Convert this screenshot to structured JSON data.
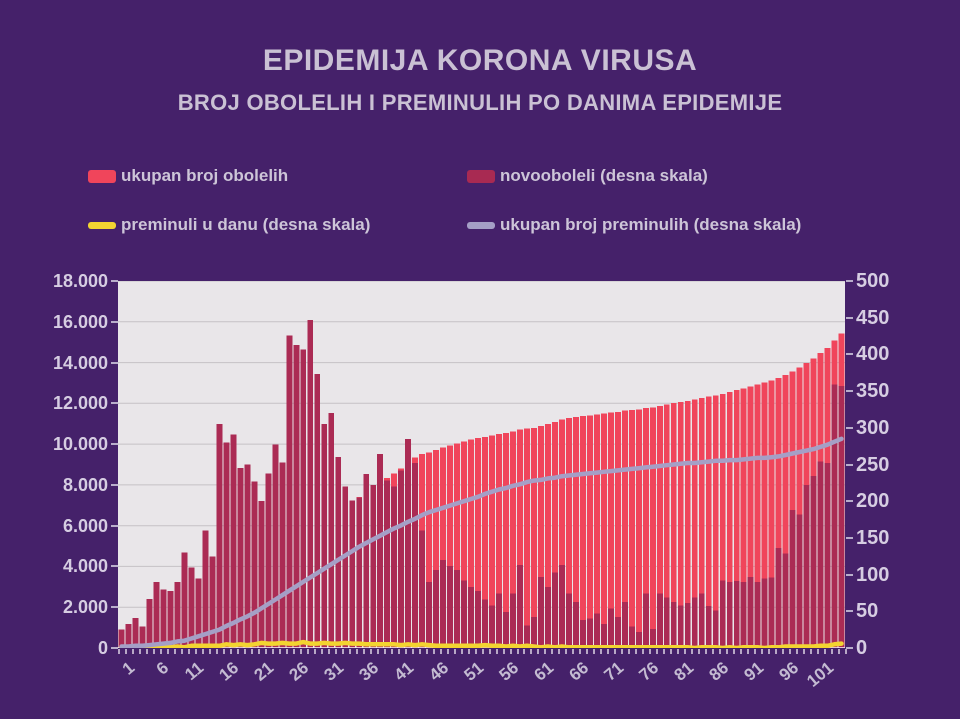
{
  "page": {
    "background": "#45216a",
    "text_color": "#cac1d4"
  },
  "header": {
    "title": "EPIDEMIJA KORONA VIRUSA",
    "subtitle": "BROJ OBOLELIH I PREMINULIH PO DANIMA EPIDEMIJE"
  },
  "legend": {
    "items": [
      {
        "label": "ukupan broj obolelih",
        "color": "#f0455b",
        "swatch": "bar"
      },
      {
        "label": "novooboleli (desna skala)",
        "color": "#a82a52",
        "swatch": "bar"
      },
      {
        "label": "preminuli u danu (desna skala)",
        "color": "#f3d431",
        "swatch": "line"
      },
      {
        "label": "ukupan broj preminulih (desna skala)",
        "color": "#a59fc6",
        "swatch": "line"
      }
    ]
  },
  "chart_data": {
    "type": "combo",
    "num_days": 104,
    "plot_bg": "#e9e6e9",
    "grid_color": "#c5c1c5",
    "x_tick_labels": [
      "1",
      "6",
      "11",
      "16",
      "21",
      "26",
      "31",
      "36",
      "41",
      "46",
      "51",
      "56",
      "61",
      "66",
      "71",
      "76",
      "81",
      "86",
      "91",
      "96",
      "101"
    ],
    "left_axis": {
      "lim": [
        0,
        18000
      ],
      "ticks": [
        "0",
        "2.000",
        "4.000",
        "6.000",
        "8.000",
        "10.000",
        "12.000",
        "14.000",
        "16.000",
        "18.000"
      ]
    },
    "right_axis": {
      "lim": [
        0,
        500
      ],
      "ticks": [
        "0",
        "50",
        "100",
        "150",
        "200",
        "250",
        "300",
        "350",
        "400",
        "450",
        "500"
      ]
    },
    "series": [
      {
        "name": "ukupan broj obolelih",
        "type": "bar",
        "axis": "left",
        "color": "#f0455b",
        "values": [
          125,
          158,
          199,
          228,
          295,
          385,
          465,
          543,
          633,
          763,
          873,
          968,
          1128,
          1253,
          1558,
          1838,
          2129,
          2374,
          2624,
          2851,
          3051,
          3289,
          3566,
          3819,
          4245,
          4658,
          5065,
          5512,
          5885,
          6190,
          6510,
          6770,
          6990,
          7191,
          7396,
          7633,
          7855,
          8119,
          8347,
          8567,
          8809,
          9094,
          9346,
          9506,
          9596,
          9702,
          9822,
          9934,
          10040,
          10132,
          10215,
          10293,
          10359,
          10417,
          10491,
          10540,
          10614,
          10727,
          10758,
          10800,
          10897,
          10980,
          11083,
          11196,
          11270,
          11333,
          11371,
          11411,
          11458,
          11491,
          11545,
          11587,
          11650,
          11679,
          11701,
          11775,
          11801,
          11875,
          11944,
          12007,
          12065,
          12126,
          12195,
          12269,
          12326,
          12377,
          12469,
          12559,
          12650,
          12740,
          12837,
          12927,
          13022,
          13118,
          13254,
          13383,
          13571,
          13753,
          13975,
          14209,
          14463,
          14715,
          15074,
          15431
        ]
      },
      {
        "name": "novooboleli",
        "type": "bar",
        "axis": "right",
        "color": "#ab2b54",
        "values": [
          25,
          33,
          41,
          29,
          67,
          90,
          80,
          78,
          90,
          130,
          110,
          95,
          160,
          125,
          305,
          280,
          291,
          245,
          250,
          227,
          200,
          238,
          277,
          253,
          426,
          413,
          407,
          447,
          373,
          305,
          320,
          260,
          220,
          201,
          205,
          237,
          222,
          264,
          228,
          220,
          242,
          285,
          252,
          160,
          90,
          106,
          120,
          112,
          106,
          92,
          83,
          78,
          66,
          58,
          74,
          49,
          74,
          113,
          31,
          42,
          97,
          83,
          103,
          113,
          74,
          63,
          38,
          40,
          47,
          33,
          54,
          42,
          63,
          29,
          22,
          74,
          26,
          74,
          69,
          63,
          58,
          61,
          69,
          74,
          57,
          51,
          92,
          90,
          91,
          90,
          97,
          90,
          95,
          96,
          136,
          129,
          188,
          182,
          222,
          234,
          254,
          252,
          359,
          357
        ]
      },
      {
        "name": "preminuli u danu",
        "type": "line",
        "axis": "right",
        "color": "#f3d431",
        "values": [
          1,
          0,
          1,
          0,
          1,
          1,
          1,
          1,
          2,
          1,
          3,
          3,
          3,
          3,
          3,
          5,
          4,
          5,
          4,
          5,
          7,
          6,
          6,
          7,
          6,
          6,
          8,
          6,
          6,
          7,
          6,
          6,
          7,
          6,
          6,
          5,
          5,
          5,
          5,
          5,
          4,
          5,
          4,
          5,
          4,
          3,
          3,
          3,
          3,
          3,
          3,
          3,
          4,
          3,
          3,
          2,
          3,
          2,
          3,
          2,
          1,
          2,
          1,
          2,
          1,
          1,
          1,
          1,
          1,
          1,
          1,
          1,
          1,
          1,
          1,
          1,
          1,
          1,
          1,
          1,
          1,
          1,
          0,
          1,
          1,
          1,
          0,
          1,
          0,
          1,
          1,
          1,
          0,
          1,
          1,
          2,
          2,
          2,
          2,
          2,
          3,
          3,
          5,
          6
        ]
      },
      {
        "name": "ukupan broj preminulih",
        "type": "line",
        "axis": "right",
        "color": "#a59fc6",
        "values": [
          2,
          2,
          3,
          3,
          4,
          5,
          6,
          7,
          9,
          10,
          13,
          16,
          19,
          22,
          25,
          30,
          34,
          39,
          43,
          48,
          54,
          60,
          66,
          72,
          78,
          84,
          90,
          96,
          102,
          108,
          114,
          120,
          126,
          132,
          138,
          143,
          148,
          153,
          158,
          163,
          167,
          172,
          176,
          181,
          185,
          188,
          191,
          194,
          197,
          200,
          203,
          206,
          210,
          213,
          216,
          218,
          221,
          223,
          226,
          228,
          229,
          231,
          232,
          234,
          235,
          236,
          237,
          238,
          239,
          240,
          241,
          242,
          243,
          244,
          245,
          246,
          247,
          248,
          249,
          250,
          251,
          252,
          252,
          253,
          254,
          255,
          255,
          256,
          256,
          257,
          258,
          259,
          259,
          260,
          261,
          263,
          265,
          267,
          269,
          271,
          274,
          277,
          281,
          285
        ]
      }
    ]
  }
}
